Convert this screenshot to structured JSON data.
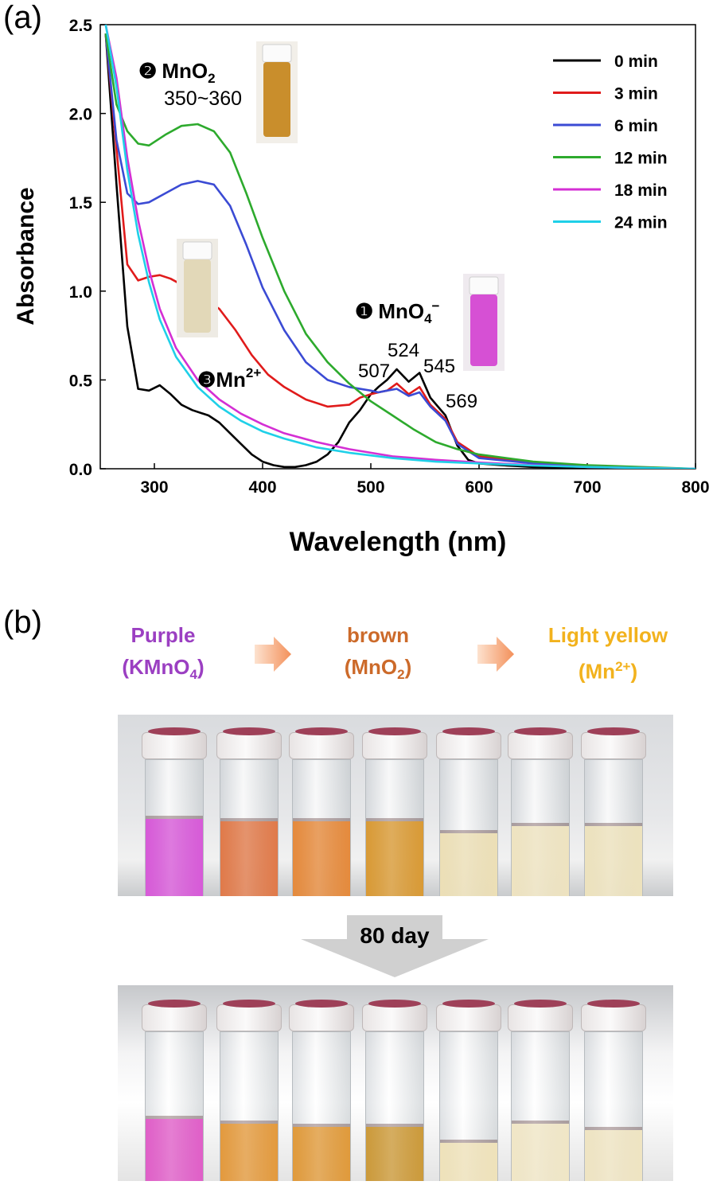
{
  "panel_a_label": "(a)",
  "panel_b_label": "(b)",
  "chart_data": {
    "type": "line",
    "xlabel": "Wavelength (nm)",
    "ylabel": "Absorbance",
    "xlim": [
      250,
      800
    ],
    "ylim": [
      0,
      2.5
    ],
    "xticks": [
      300,
      400,
      500,
      600,
      700,
      800
    ],
    "yticks": [
      0.0,
      0.5,
      1.0,
      1.5,
      2.0,
      2.5
    ],
    "legend_position": "top-right",
    "series": [
      {
        "name": "0 min",
        "color": "#000000",
        "x": [
          255,
          265,
          275,
          285,
          295,
          305,
          315,
          325,
          335,
          350,
          360,
          370,
          380,
          390,
          400,
          410,
          420,
          430,
          440,
          450,
          460,
          470,
          480,
          490,
          500,
          507,
          515,
          524,
          535,
          545,
          555,
          569,
          580,
          590,
          600,
          620,
          650,
          700,
          750,
          800
        ],
        "y": [
          2.45,
          1.6,
          0.8,
          0.45,
          0.44,
          0.47,
          0.42,
          0.36,
          0.33,
          0.3,
          0.26,
          0.2,
          0.14,
          0.08,
          0.04,
          0.02,
          0.01,
          0.01,
          0.02,
          0.04,
          0.08,
          0.15,
          0.26,
          0.33,
          0.42,
          0.46,
          0.5,
          0.56,
          0.49,
          0.54,
          0.4,
          0.3,
          0.13,
          0.05,
          0.03,
          0.02,
          0.01,
          0.005,
          0.002,
          0.0
        ]
      },
      {
        "name": "3 min",
        "color": "#e01b1b",
        "x": [
          255,
          265,
          275,
          285,
          295,
          305,
          315,
          330,
          345,
          360,
          375,
          390,
          405,
          420,
          440,
          460,
          480,
          490,
          500,
          507,
          515,
          524,
          535,
          545,
          555,
          569,
          580,
          600,
          650,
          700,
          750,
          800
        ],
        "y": [
          2.45,
          1.8,
          1.15,
          1.06,
          1.08,
          1.09,
          1.07,
          1.02,
          0.96,
          0.9,
          0.78,
          0.64,
          0.53,
          0.46,
          0.39,
          0.35,
          0.36,
          0.4,
          0.42,
          0.43,
          0.44,
          0.48,
          0.42,
          0.46,
          0.36,
          0.28,
          0.15,
          0.07,
          0.03,
          0.01,
          0.005,
          0.0
        ]
      },
      {
        "name": "6 min",
        "color": "#3b4bd4",
        "x": [
          255,
          265,
          275,
          285,
          295,
          310,
          325,
          340,
          355,
          370,
          385,
          400,
          420,
          440,
          460,
          480,
          500,
          507,
          515,
          524,
          535,
          545,
          555,
          569,
          580,
          600,
          650,
          700,
          750,
          800
        ],
        "y": [
          2.45,
          1.85,
          1.55,
          1.49,
          1.5,
          1.55,
          1.6,
          1.62,
          1.6,
          1.48,
          1.26,
          1.02,
          0.78,
          0.6,
          0.5,
          0.46,
          0.44,
          0.43,
          0.44,
          0.45,
          0.41,
          0.43,
          0.35,
          0.27,
          0.14,
          0.06,
          0.03,
          0.01,
          0.005,
          0.0
        ]
      },
      {
        "name": "12 min",
        "color": "#2daa2d",
        "x": [
          255,
          265,
          275,
          285,
          295,
          310,
          325,
          340,
          355,
          370,
          385,
          400,
          420,
          440,
          460,
          480,
          500,
          520,
          540,
          560,
          580,
          600,
          650,
          700,
          750,
          800
        ],
        "y": [
          2.45,
          2.05,
          1.9,
          1.83,
          1.82,
          1.88,
          1.93,
          1.94,
          1.9,
          1.78,
          1.55,
          1.3,
          1.0,
          0.76,
          0.6,
          0.48,
          0.38,
          0.3,
          0.22,
          0.15,
          0.11,
          0.08,
          0.04,
          0.02,
          0.01,
          0.0
        ]
      },
      {
        "name": "18 min",
        "color": "#d42fd4",
        "x": [
          255,
          265,
          275,
          285,
          295,
          305,
          320,
          340,
          360,
          380,
          400,
          420,
          450,
          480,
          520,
          560,
          600,
          650,
          700,
          750,
          800
        ],
        "y": [
          2.5,
          2.2,
          1.75,
          1.4,
          1.12,
          0.9,
          0.68,
          0.5,
          0.39,
          0.31,
          0.25,
          0.2,
          0.15,
          0.11,
          0.07,
          0.05,
          0.035,
          0.02,
          0.01,
          0.005,
          0.0
        ]
      },
      {
        "name": "24 min",
        "color": "#1fd0e8",
        "x": [
          255,
          265,
          275,
          285,
          295,
          305,
          320,
          340,
          360,
          380,
          400,
          420,
          450,
          480,
          520,
          560,
          600,
          650,
          700,
          750,
          800
        ],
        "y": [
          2.5,
          2.15,
          1.68,
          1.32,
          1.05,
          0.84,
          0.63,
          0.46,
          0.35,
          0.27,
          0.21,
          0.17,
          0.12,
          0.09,
          0.06,
          0.04,
          0.03,
          0.018,
          0.01,
          0.004,
          0.0
        ]
      }
    ],
    "annotations": {
      "mno2_marker": "❷",
      "mno2_species": "MnO",
      "mno2_sub": "2",
      "mno2_range": "350~360",
      "mno4_marker": "❶",
      "mno4_species": "MnO",
      "mno4_sub": "4",
      "mno4_sup": "−",
      "mn_marker": "❸",
      "mn_species": "Mn",
      "mn_sup": "2+",
      "peak_507": "507",
      "peak_524": "524",
      "peak_545": "545",
      "peak_569": "569"
    }
  },
  "color_sequence": {
    "purple_name": "Purple",
    "purple_formula_open": "(KMnO",
    "purple_formula_sub": "4",
    "purple_formula_close": ")",
    "brown_name": "brown",
    "brown_formula_open": "(MnO",
    "brown_formula_sub": "2",
    "brown_formula_close": ")",
    "yellow_name": "Light yellow",
    "yellow_formula_open": "(Mn",
    "yellow_formula_sup": "2+",
    "yellow_formula_close": ")"
  },
  "aging_label": "80 day",
  "photos": {
    "initial_liquid_levels": [
      0.6,
      0.58,
      0.58,
      0.58,
      0.5,
      0.55,
      0.55
    ],
    "aged_liquid_levels": [
      0.45,
      0.42,
      0.4,
      0.4,
      0.3,
      0.42,
      0.38
    ],
    "initial_colors": [
      "#d75ad8",
      "#e07a4a",
      "#e58a3c",
      "#d99a35",
      "#ecdfb6",
      "#eee3c0",
      "#ede2bd"
    ],
    "aged_colors": [
      "#e05fc8",
      "#e39a3e",
      "#e09a3b",
      "#cc9a3a",
      "#efe2ba",
      "#f0e6c6",
      "#efe4c2"
    ]
  }
}
